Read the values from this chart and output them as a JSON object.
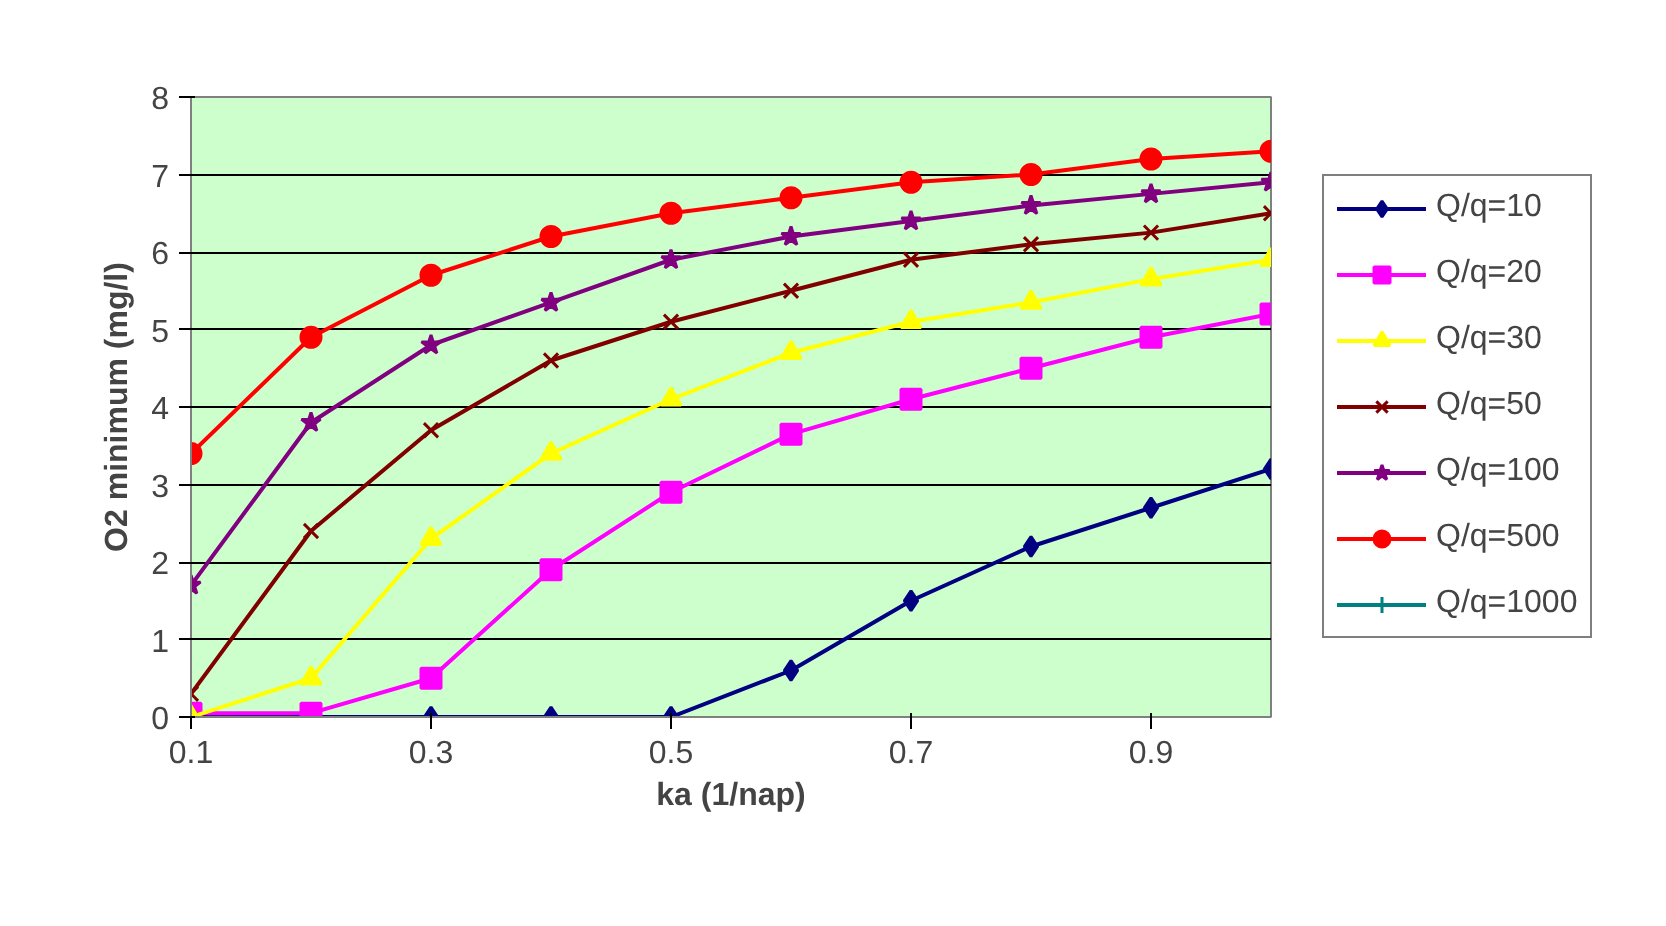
{
  "chart_data": {
    "type": "line",
    "xlabel": "ka (1/nap)",
    "ylabel": "O2 minimum (mg/l)",
    "x": [
      0.1,
      0.2,
      0.3,
      0.4,
      0.5,
      0.6,
      0.7,
      0.8,
      0.9,
      1.0
    ],
    "xlim": [
      0.1,
      1.0
    ],
    "xticks": [
      0.1,
      0.3,
      0.5,
      0.7,
      0.9
    ],
    "ylim": [
      0,
      8
    ],
    "yticks": [
      0,
      1,
      2,
      3,
      4,
      5,
      6,
      7,
      8
    ],
    "grid": "y",
    "legend": "right",
    "line_style": "solid",
    "series": [
      {
        "name": "Q/q=10",
        "color": "#000080",
        "marker": "diamond",
        "values": [
          0,
          0,
          0,
          0,
          0,
          0.6,
          1.5,
          2.2,
          2.7,
          3.2
        ]
      },
      {
        "name": "Q/q=20",
        "color": "#ff00ff",
        "marker": "square",
        "values": [
          0.05,
          0.05,
          0.5,
          1.9,
          2.9,
          3.65,
          4.1,
          4.5,
          4.9,
          5.2
        ]
      },
      {
        "name": "Q/q=30",
        "color": "#ffff00",
        "marker": "triangle",
        "values": [
          0,
          0.5,
          2.3,
          3.4,
          4.1,
          4.7,
          5.1,
          5.35,
          5.65,
          5.9
        ]
      },
      {
        "name": "Q/q=50",
        "color": "#800000",
        "marker": "cross",
        "values": [
          0.3,
          2.4,
          3.7,
          4.6,
          5.1,
          5.5,
          5.9,
          6.1,
          6.25,
          6.5
        ]
      },
      {
        "name": "Q/q=100",
        "color": "#800080",
        "marker": "star",
        "values": [
          1.7,
          3.8,
          4.8,
          5.35,
          5.9,
          6.2,
          6.4,
          6.6,
          6.75,
          6.9
        ]
      },
      {
        "name": "Q/q=500",
        "color": "#ff0000",
        "marker": "circle",
        "values": [
          3.4,
          4.9,
          5.7,
          6.2,
          6.5,
          6.7,
          6.9,
          7.0,
          7.2,
          7.3
        ]
      },
      {
        "name": "Q/q=1000",
        "color": "#008080",
        "marker": "plus",
        "values": [
          null,
          null,
          null,
          null,
          null,
          null,
          null,
          null,
          null,
          null
        ]
      }
    ]
  }
}
